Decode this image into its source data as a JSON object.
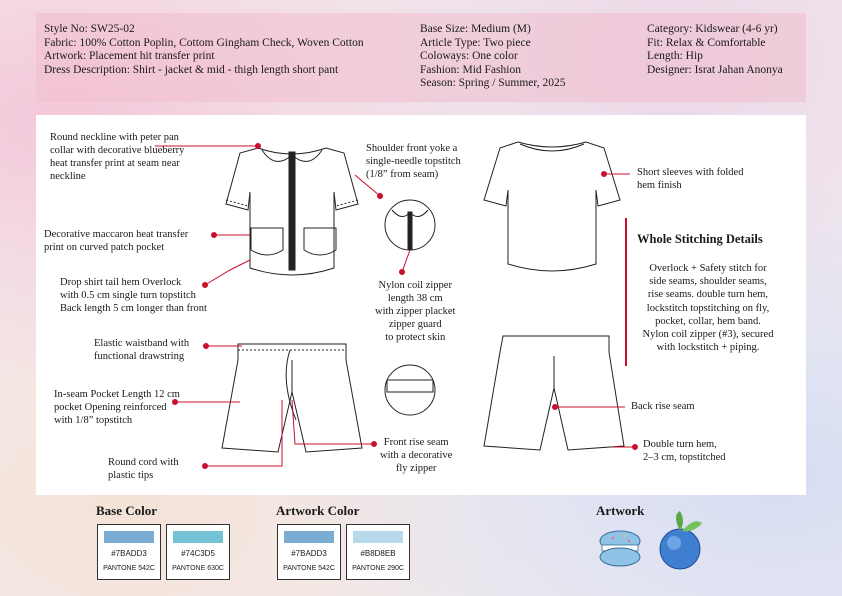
{
  "header": {
    "col1": [
      "Style No: SW25-02",
      "Fabric: 100% Cotton Poplin, Cottom Gingham Check, Woven Cotton",
      "Artwork: Placement hit transfer print",
      "Dress Description: Shirt - jacket & mid - thigh length short pant"
    ],
    "col2": [
      "Base Size: Medium (M)",
      "Article Type: Two piece",
      "Coloways: One color",
      "Fashion: Mid Fashion",
      "Season: Spring / Summer, 2025"
    ],
    "col3": [
      "Category: Kidswear (4-6 yr)",
      "Fit: Relax & Comfortable",
      "Length: Hip",
      "Designer: Israt Jahan Anonya"
    ]
  },
  "notes": {
    "neckline": [
      "Round neckline with peter pan",
      "collar with decorative blueberry",
      "heat transfer print at seam near",
      "neckline"
    ],
    "pocket": [
      "Decorative maccaron heat transfer",
      "print on curved patch pocket"
    ],
    "hem": [
      "Drop shirt tail hem Overlock",
      "with 0.5 cm single turn topstitch",
      "Back length 5 cm longer than front"
    ],
    "yoke": [
      "Shoulder front yoke a",
      "single-needle topstitch",
      "(1/8” from seam)"
    ],
    "zipper": [
      "Nylon coil zipper",
      "length 38 cm",
      "with zipper placket",
      "zipper guard",
      "to protect skin"
    ],
    "sleeve": [
      "Short sleeves with folded",
      "hem finish"
    ],
    "waist": [
      "Elastic waistband with",
      "functional drawstring"
    ],
    "inseam": [
      "In-seam Pocket Length 12 cm",
      "pocket Opening reinforced",
      "with 1/8” topstitch"
    ],
    "cord": [
      "Round cord with",
      "plastic tips"
    ],
    "frontrise": [
      "Front rise seam",
      "with a decorative",
      "fly zipper"
    ],
    "backrise": [
      "Back rise seam"
    ],
    "doublehem": [
      "Double turn hem,",
      "2–3 cm, topstitched"
    ]
  },
  "stitching": {
    "title": "Whole Stitching Details",
    "lines": [
      "Overlock + Safety stitch for",
      "side seams, shoulder seams,",
      "rise seams. double turn hem,",
      "lockstitch topstitching on fly,",
      "pocket, collar, hem band.",
      "Nylon coil zipper (#3), secured",
      "with lockstitch + piping."
    ]
  },
  "colors": {
    "base_title": "Base Color",
    "artwork_title": "Artwork Color",
    "artwork_label": "Artwork",
    "base": [
      {
        "hex": "#7BADD3",
        "pantone": "PANTONE 542C"
      },
      {
        "hex": "#74C3D5",
        "pantone": "PANTONE 630C"
      }
    ],
    "artwork": [
      {
        "hex": "#7BADD3",
        "pantone": "PANTONE 542C"
      },
      {
        "hex": "#B8D8EB",
        "pantone": "PANTONE 290C"
      }
    ],
    "accent_red": "#c8102e"
  }
}
